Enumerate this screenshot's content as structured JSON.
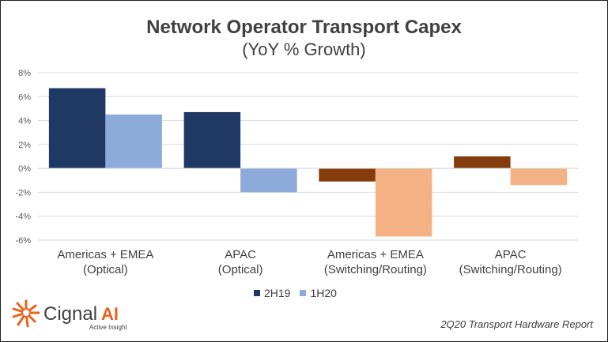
{
  "chart_data": {
    "type": "bar",
    "title": "Network Operator Transport Capex",
    "subtitle": "(YoY % Growth)",
    "categories": [
      [
        "Americas + EMEA",
        "(Optical)"
      ],
      [
        "APAC",
        "(Optical)"
      ],
      [
        "Americas + EMEA",
        "(Switching/Routing)"
      ],
      [
        "APAC",
        "(Switching/Routing)"
      ]
    ],
    "series": [
      {
        "name": "2H19",
        "values": [
          6.7,
          4.7,
          -1.1,
          1.0
        ],
        "colors": [
          "#1f3864",
          "#1f3864",
          "#843c0c",
          "#843c0c"
        ]
      },
      {
        "name": "1H20",
        "values": [
          4.5,
          -2.0,
          -5.7,
          -1.4
        ],
        "colors": [
          "#8eaadb",
          "#8eaadb",
          "#f4b183",
          "#f4b183"
        ]
      }
    ],
    "ylim": [
      -6,
      8
    ],
    "yticks": [
      8,
      6,
      4,
      2,
      0,
      -2,
      -4,
      -6
    ],
    "ytick_labels": [
      "8%",
      "6%",
      "4%",
      "2%",
      "0%",
      "-2%",
      "-4%",
      "-6%"
    ],
    "grid": true,
    "legend": "bottom",
    "legend_colors": [
      "#1f3864",
      "#8eaadb"
    ]
  },
  "logo": {
    "name": "Cignal",
    "suffix": "AI",
    "tagline": "Active Insight",
    "color": "#e8641e"
  },
  "footer": "2Q20 Transport Hardware Report"
}
